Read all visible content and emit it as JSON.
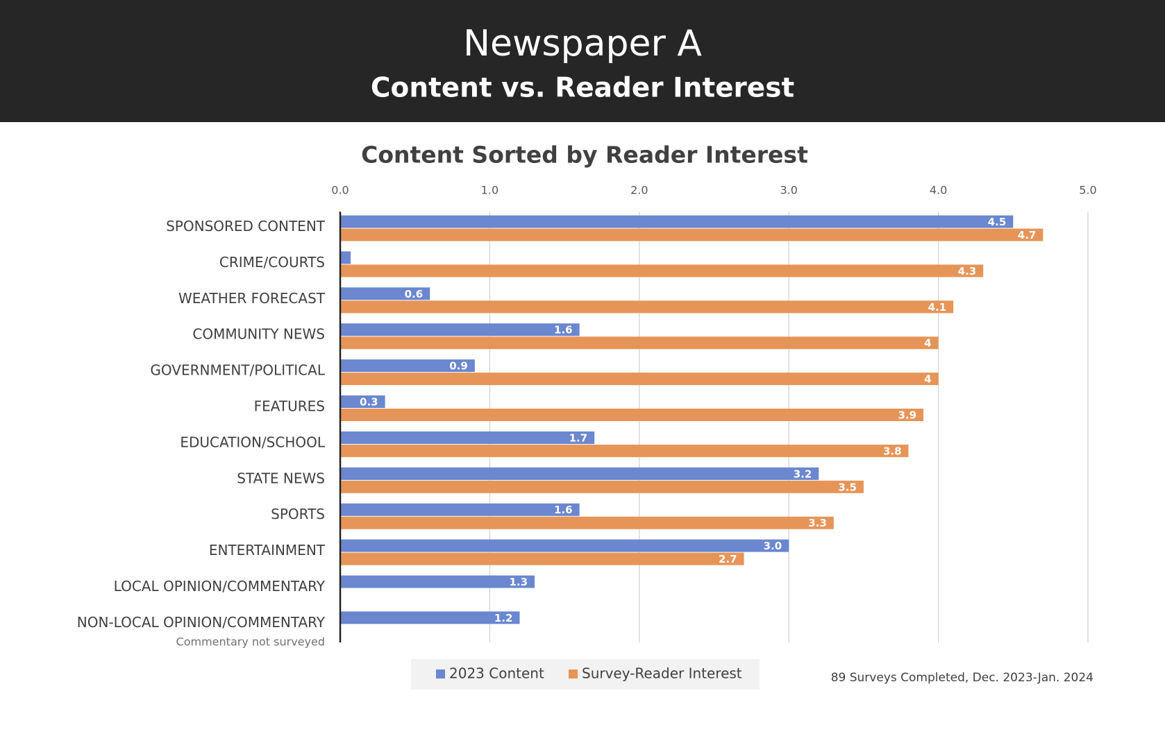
{
  "header": {
    "title": "Newspaper A",
    "subtitle": "Content vs. Reader Interest"
  },
  "chart_data": {
    "type": "bar",
    "orientation": "horizontal",
    "title": "Content Sorted by Reader Interest",
    "categories": [
      "SPONSORED CONTENT",
      "CRIME/COURTS",
      "WEATHER FORECAST",
      "COMMUNITY NEWS",
      "GOVERNMENT/POLITICAL",
      "FEATURES",
      "EDUCATION/SCHOOL",
      "STATE NEWS",
      "SPORTS",
      "ENTERTAINMENT",
      "LOCAL OPINION/COMMENTARY",
      "NON-LOCAL OPINION/COMMENTARY"
    ],
    "series": [
      {
        "name": "2023 Content",
        "color": "#6a87cf",
        "values": [
          4.5,
          0.07,
          0.6,
          1.6,
          0.9,
          0.3,
          1.7,
          3.2,
          1.6,
          3.0,
          1.3,
          1.2
        ],
        "value_labels": [
          "4.5",
          null,
          "0.6",
          "1.6",
          "0.9",
          "0.3",
          "1.7",
          "3.2",
          "1.6",
          "3.0",
          "1.3",
          "1.2"
        ]
      },
      {
        "name": "Survey-Reader Interest",
        "color": "#e69558",
        "values": [
          4.7,
          4.3,
          4.1,
          4,
          4,
          3.9,
          3.8,
          3.5,
          3.3,
          2.7,
          null,
          null
        ]
      }
    ],
    "xlim": [
      0,
      5
    ],
    "xticks": [
      {
        "value": 0,
        "label": "0.0"
      },
      {
        "value": 1,
        "label": "1.0"
      },
      {
        "value": 2,
        "label": "2.0"
      },
      {
        "value": 3,
        "label": "3.0"
      },
      {
        "value": 4,
        "label": "4.0"
      },
      {
        "value": 5,
        "label": "5.0"
      }
    ],
    "grid": true,
    "legend": "bottom",
    "annotations": [
      "Commentary not surveyed",
      "89 Surveys Completed, Dec. 2023-Jan. 2024"
    ]
  }
}
